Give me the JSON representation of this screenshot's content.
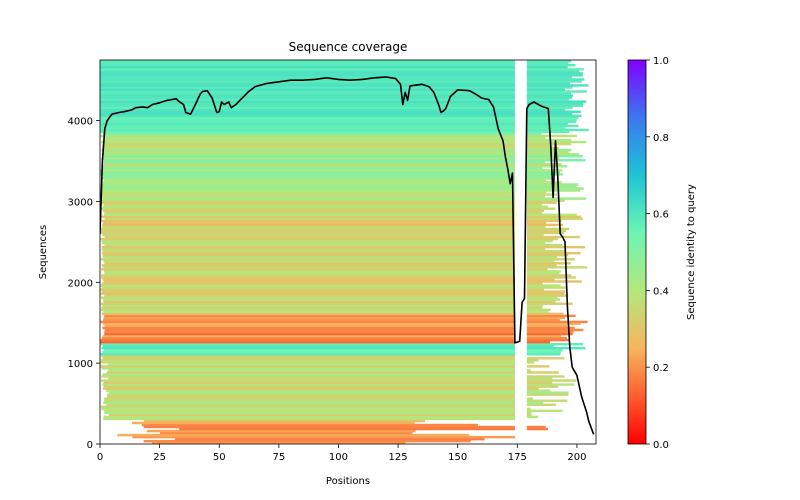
{
  "chart_data": {
    "type": "heatmap",
    "title": "Sequence coverage",
    "xlabel": "Positions",
    "ylabel": "Sequences",
    "xlim": [
      0,
      208
    ],
    "ylim": [
      0,
      4750
    ],
    "x_ticks": [
      0,
      25,
      50,
      75,
      100,
      125,
      150,
      175,
      200
    ],
    "y_ticks": [
      0,
      1000,
      2000,
      3000,
      4000
    ],
    "colorbar": {
      "label": "Sequence identity to query",
      "range": [
        0.0,
        1.0
      ],
      "ticks": [
        "0.0",
        "0.2",
        "0.4",
        "0.6",
        "0.8",
        "1.0"
      ],
      "colormap": "rainbow_r"
    },
    "gap_columns": [
      [
        174,
        179
      ]
    ],
    "low_identity_band": [
      1200,
      1600
    ],
    "high_identity_band": [
      1100,
      1250
    ],
    "coverage_line": {
      "name": "coverage",
      "color": "#000000",
      "x": [
        0,
        1,
        2,
        3,
        5,
        8,
        10,
        13,
        15,
        18,
        20,
        22,
        25,
        28,
        30,
        32,
        33,
        35,
        36,
        38,
        40,
        42,
        43,
        45,
        47,
        49,
        50,
        51,
        52,
        54,
        55,
        57,
        59,
        60,
        62,
        65,
        70,
        75,
        80,
        85,
        90,
        95,
        100,
        105,
        110,
        115,
        120,
        124,
        126,
        127,
        128,
        129,
        130,
        135,
        138,
        140,
        142,
        143,
        144,
        145,
        147,
        150,
        155,
        158,
        160,
        163,
        165,
        167,
        169,
        170,
        171,
        172,
        173,
        174,
        175,
        176,
        177,
        178,
        179,
        180,
        182,
        185,
        188,
        189,
        190,
        191,
        192,
        193,
        194,
        195,
        196,
        197,
        198,
        200,
        202,
        204,
        205,
        206,
        207
      ],
      "y": [
        2600,
        3500,
        3900,
        4000,
        4080,
        4100,
        4110,
        4130,
        4160,
        4170,
        4160,
        4200,
        4220,
        4250,
        4260,
        4270,
        4240,
        4200,
        4100,
        4080,
        4200,
        4330,
        4360,
        4370,
        4280,
        4100,
        4110,
        4230,
        4200,
        4230,
        4160,
        4200,
        4260,
        4290,
        4350,
        4420,
        4460,
        4480,
        4500,
        4500,
        4510,
        4530,
        4510,
        4500,
        4510,
        4530,
        4540,
        4520,
        4450,
        4200,
        4350,
        4250,
        4430,
        4450,
        4420,
        4350,
        4200,
        4100,
        4120,
        4150,
        4300,
        4380,
        4370,
        4320,
        4280,
        4260,
        4170,
        3900,
        3750,
        3550,
        3400,
        3220,
        3350,
        1250,
        1260,
        1270,
        1750,
        1800,
        4150,
        4200,
        4230,
        4180,
        4150,
        3700,
        3050,
        3750,
        3300,
        2600,
        2560,
        2500,
        1700,
        1200,
        950,
        850,
        580,
        400,
        280,
        200,
        120
      ]
    }
  }
}
